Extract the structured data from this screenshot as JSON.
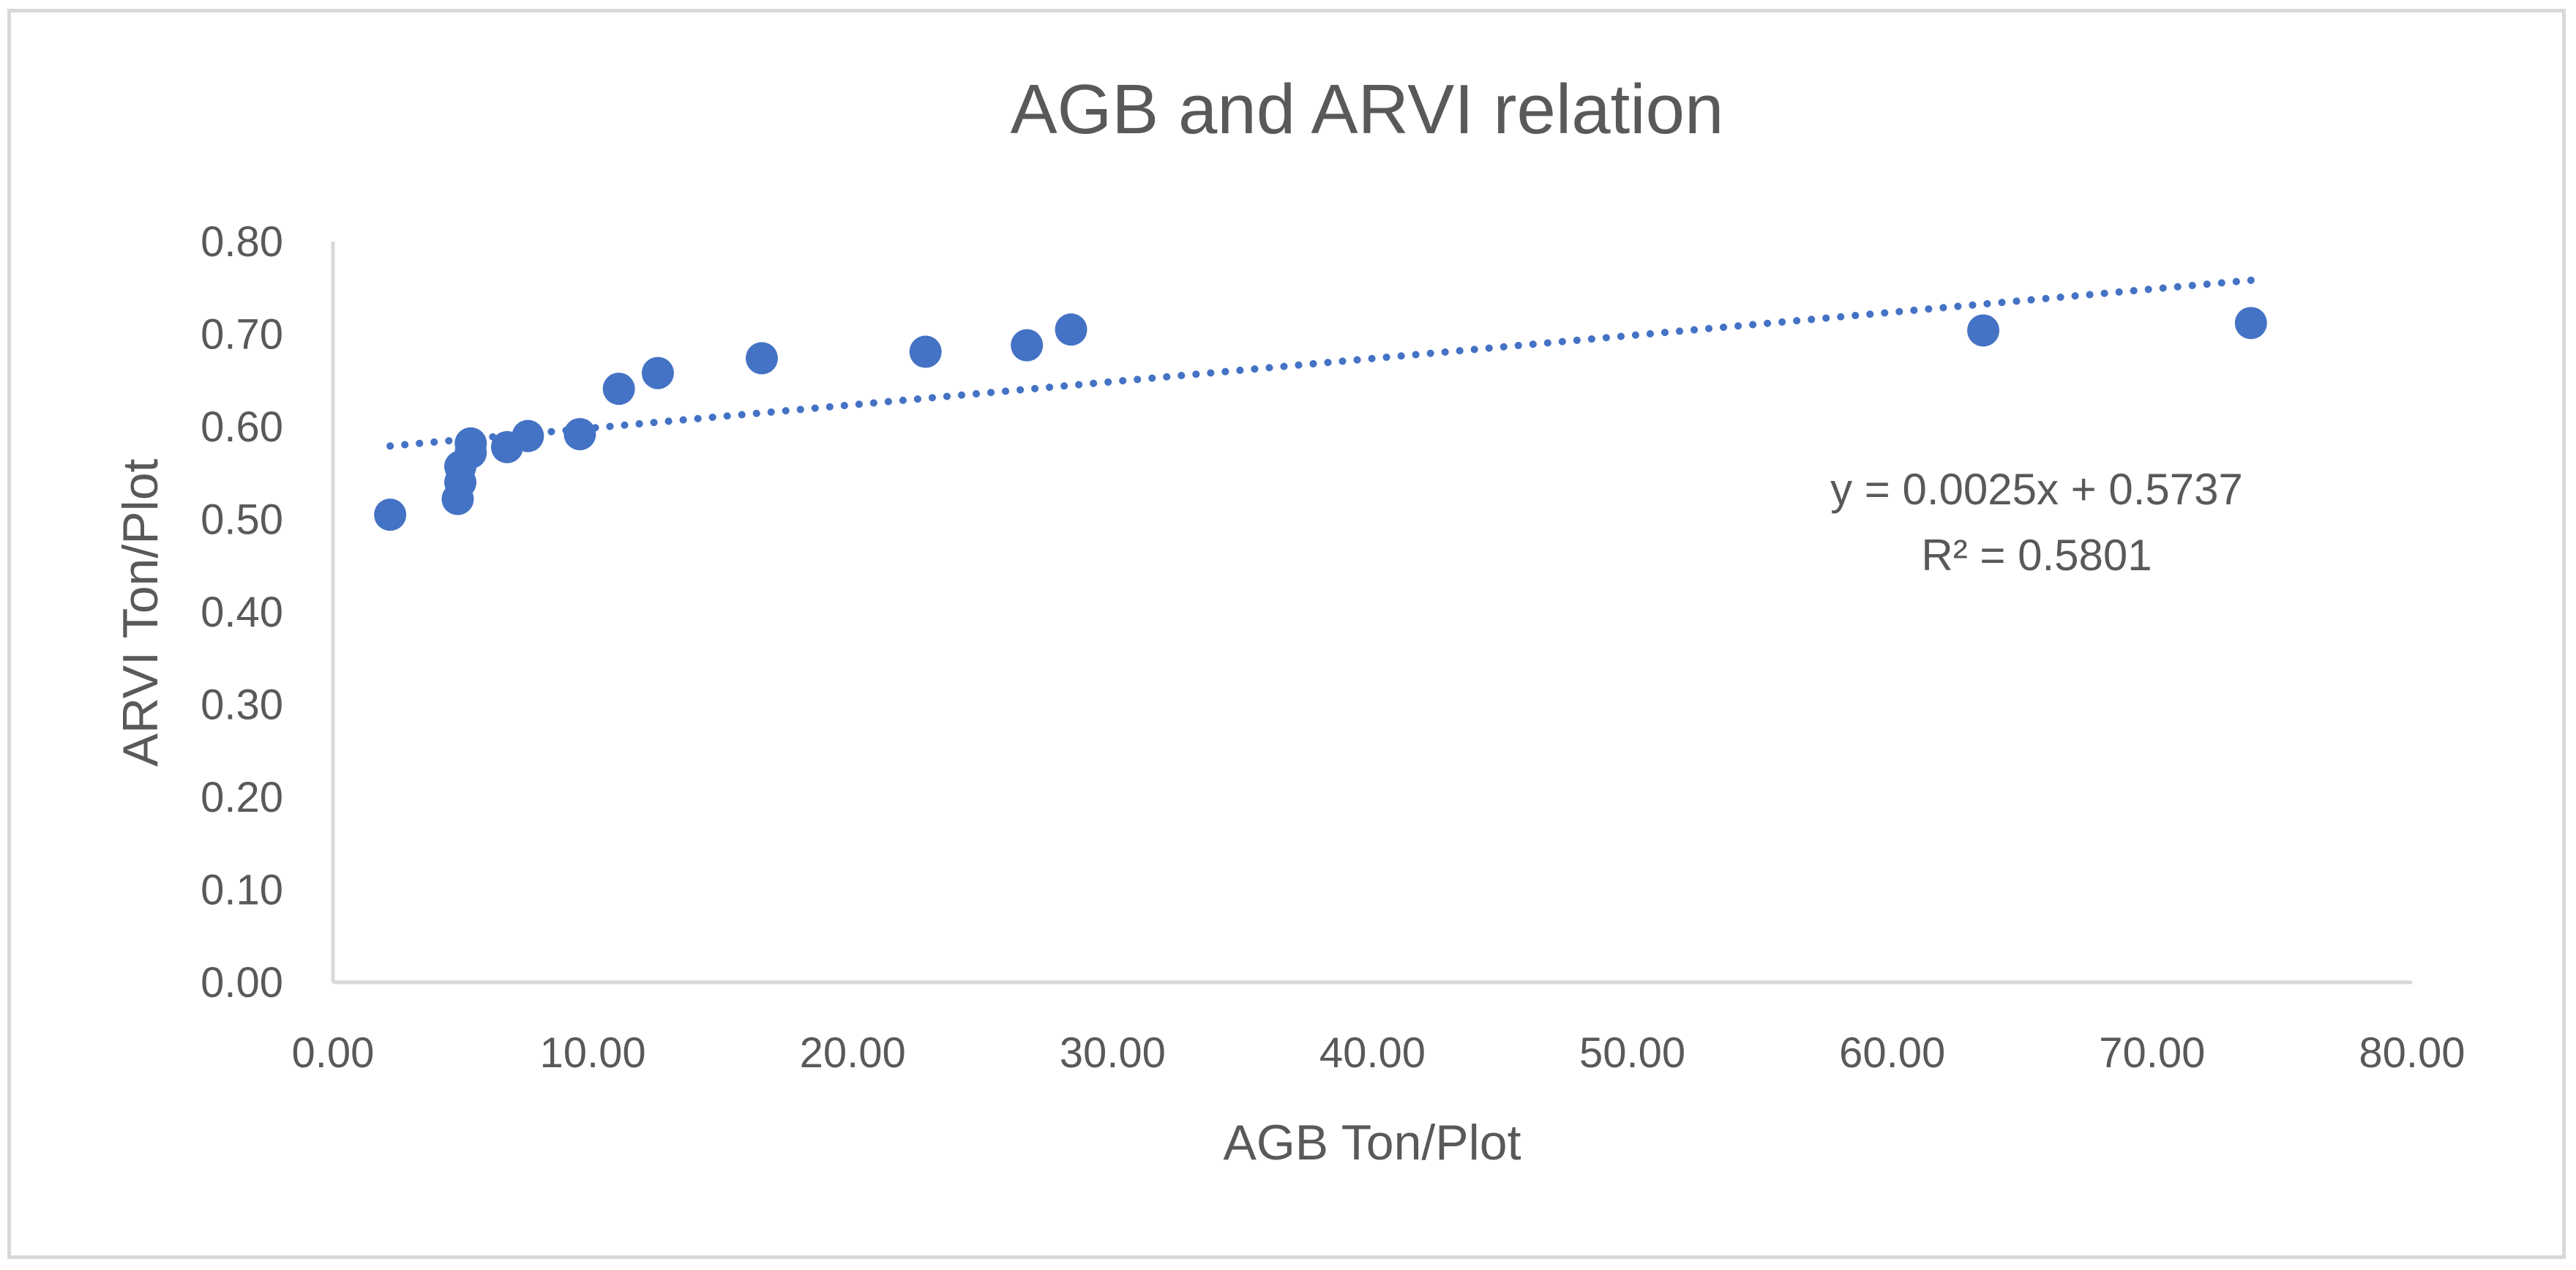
{
  "chart_data": {
    "type": "scatter",
    "title": "AGB and ARVI relation",
    "xlabel": "AGB Ton/Plot",
    "ylabel": "ARVI Ton/Plot",
    "xlim": [
      0,
      80
    ],
    "ylim": [
      0,
      0.8
    ],
    "x_ticks": [
      "0.00",
      "10.00",
      "20.00",
      "30.00",
      "40.00",
      "50.00",
      "60.00",
      "70.00",
      "80.00"
    ],
    "y_ticks": [
      "0.00",
      "0.10",
      "0.20",
      "0.30",
      "0.40",
      "0.50",
      "0.60",
      "0.70",
      "0.80"
    ],
    "grid": false,
    "legend": "none",
    "point_color": "#4472c4",
    "trendline_color": "#4472c4",
    "series": [
      {
        "points": [
          {
            "x": 2.2,
            "y": 0.505
          },
          {
            "x": 4.8,
            "y": 0.522
          },
          {
            "x": 4.9,
            "y": 0.54
          },
          {
            "x": 4.9,
            "y": 0.557
          },
          {
            "x": 5.3,
            "y": 0.572
          },
          {
            "x": 5.3,
            "y": 0.582
          },
          {
            "x": 6.7,
            "y": 0.578
          },
          {
            "x": 7.5,
            "y": 0.59
          },
          {
            "x": 9.5,
            "y": 0.592
          },
          {
            "x": 11.0,
            "y": 0.641
          },
          {
            "x": 12.5,
            "y": 0.658
          },
          {
            "x": 16.5,
            "y": 0.674
          },
          {
            "x": 22.8,
            "y": 0.681
          },
          {
            "x": 26.7,
            "y": 0.688
          },
          {
            "x": 28.4,
            "y": 0.705
          },
          {
            "x": 63.5,
            "y": 0.704
          },
          {
            "x": 73.8,
            "y": 0.712
          }
        ]
      }
    ],
    "trendline": {
      "type": "linear",
      "slope": 0.0025,
      "intercept": 0.5737,
      "x_range": [
        2.2,
        73.8
      ],
      "equation_label": "y = 0.0025x + 0.5737",
      "r2_label": "R² = 0.5801"
    }
  }
}
